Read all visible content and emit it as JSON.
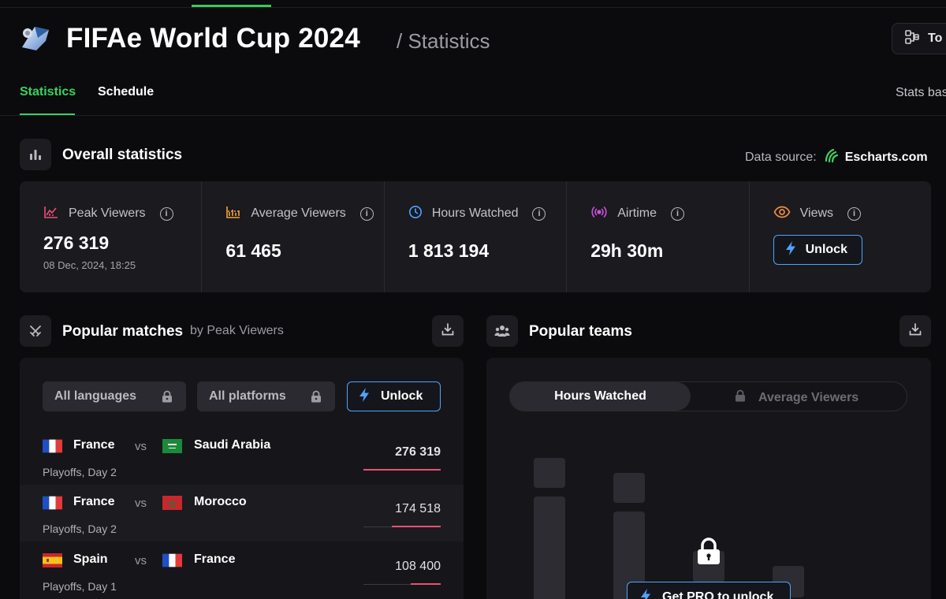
{
  "header": {
    "title": "FIFAe World Cup 2024",
    "subtitle": "/ Statistics",
    "tour_label": "To"
  },
  "tabs": [
    {
      "label": "Statistics",
      "active": true
    },
    {
      "label": "Schedule",
      "active": false
    }
  ],
  "tabs_right_text": "Stats bas",
  "overall": {
    "title": "Overall statistics",
    "data_source_label": "Data source:",
    "data_source_name": "Escharts.com",
    "stats": [
      {
        "label": "Peak Viewers",
        "value": "276 319",
        "sub": "08 Dec, 2024, 18:25",
        "icon": "peak-chart-icon",
        "color": "#ec4f76"
      },
      {
        "label": "Average Viewers",
        "value": "61 465",
        "icon": "average-chart-icon",
        "color": "#f3a23a"
      },
      {
        "label": "Hours Watched",
        "value": "1 813 194",
        "icon": "clock-icon",
        "color": "#4fa3ff"
      },
      {
        "label": "Airtime",
        "value": "29h 30m",
        "icon": "broadcast-icon",
        "color": "#d14fe0"
      },
      {
        "label": "Views",
        "unlock_label": "Unlock",
        "icon": "eye-icon",
        "color": "#f08a3c"
      }
    ]
  },
  "popular_matches": {
    "title": "Popular matches",
    "subtitle": "by Peak Viewers",
    "filters": {
      "languages": "All languages",
      "platforms": "All platforms",
      "unlock": "Unlock"
    },
    "vs_label": "vs",
    "matches": [
      {
        "team1": "France",
        "team2": "Saudi Arabia",
        "round": "Playoffs, Day 2",
        "value": "276 319",
        "fraction": 1.0
      },
      {
        "team1": "France",
        "team2": "Morocco",
        "round": "Playoffs, Day 2",
        "value": "174 518",
        "fraction": 0.63
      },
      {
        "team1": "Spain",
        "team2": "France",
        "round": "Playoffs, Day 1",
        "value": "108 400",
        "fraction": 0.39
      }
    ]
  },
  "popular_teams": {
    "title": "Popular teams",
    "toggle_active": "Hours Watched",
    "toggle_other": "Average Viewers",
    "pro_label": "Get PRO to unlock"
  }
}
